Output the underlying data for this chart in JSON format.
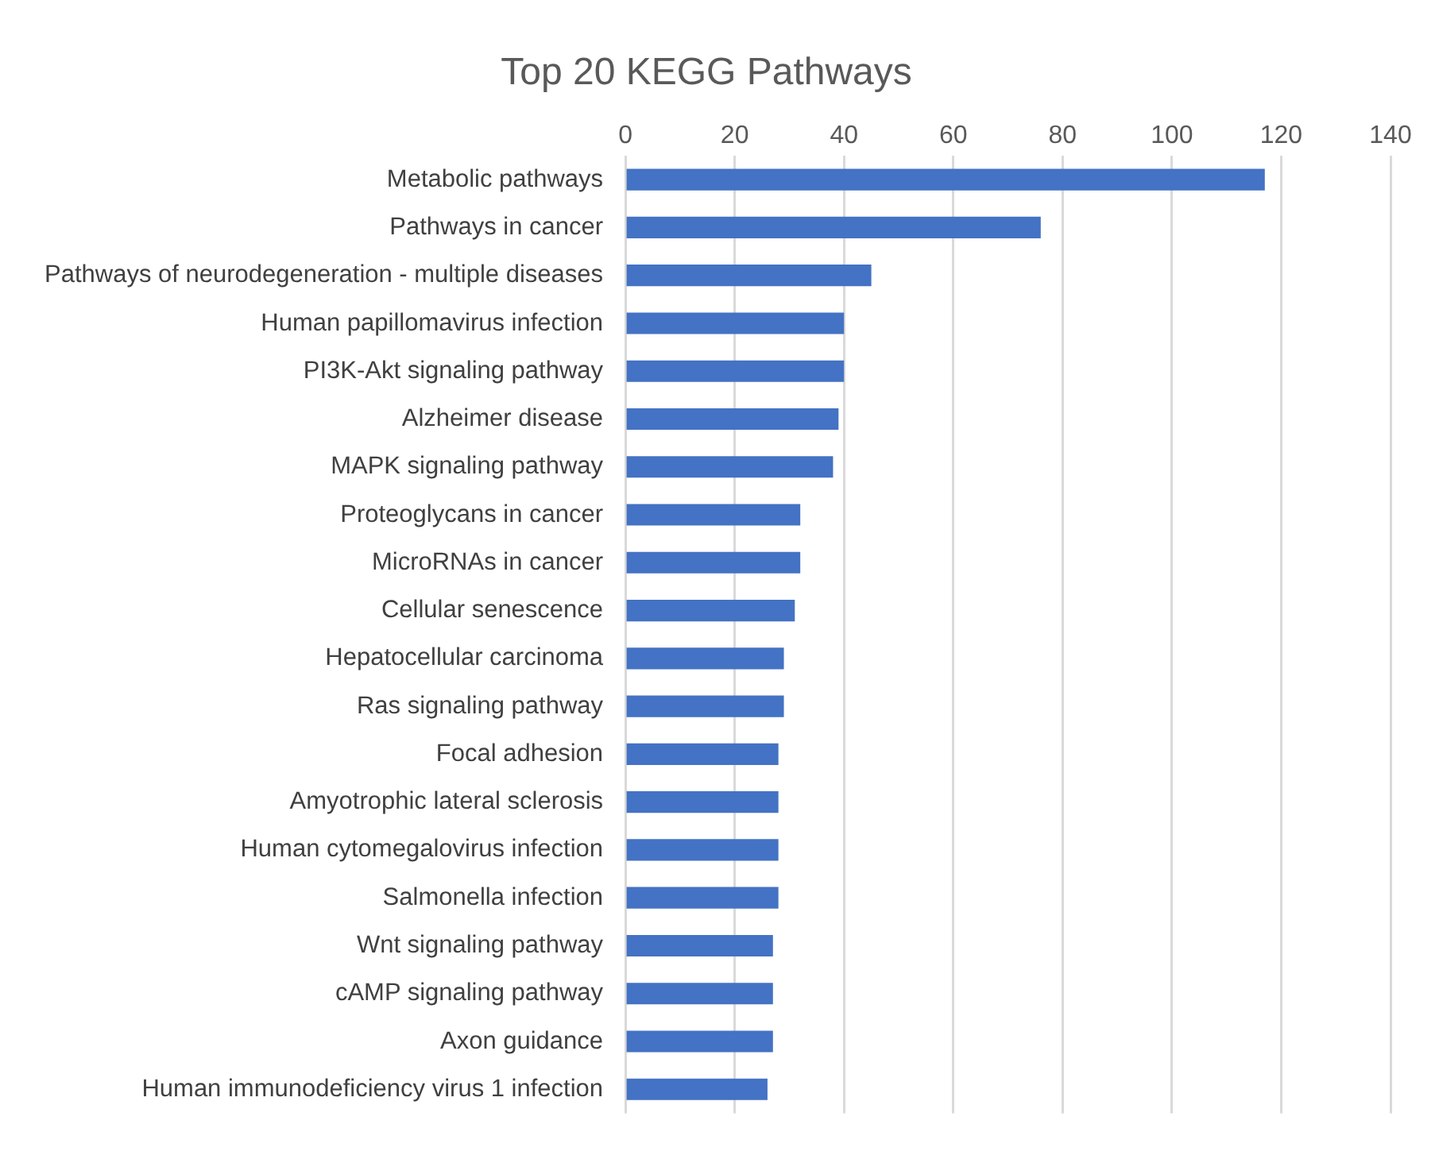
{
  "chart_data": {
    "type": "bar",
    "orientation": "horizontal",
    "title": "Top 20 KEGG Pathways",
    "categories": [
      "Metabolic pathways",
      "Pathways in cancer",
      "Pathways of neurodegeneration - multiple diseases",
      "Human papillomavirus infection",
      "PI3K-Akt signaling pathway",
      "Alzheimer disease",
      "MAPK signaling pathway",
      "Proteoglycans in cancer",
      "MicroRNAs in cancer",
      "Cellular senescence",
      "Hepatocellular carcinoma",
      "Ras signaling pathway",
      "Focal adhesion",
      "Amyotrophic lateral sclerosis",
      "Human cytomegalovirus infection",
      "Salmonella infection",
      "Wnt signaling pathway",
      "cAMP signaling pathway",
      "Axon guidance",
      "Human immunodeficiency virus 1 infection"
    ],
    "values": [
      117,
      76,
      45,
      40,
      40,
      39,
      38,
      32,
      32,
      31,
      29,
      29,
      28,
      28,
      28,
      28,
      27,
      27,
      27,
      26
    ],
    "color": "#4472c4",
    "xlim": [
      0,
      140
    ],
    "xticks": [
      0,
      20,
      40,
      60,
      80,
      100,
      120,
      140
    ],
    "grid": "x",
    "legend": false
  }
}
